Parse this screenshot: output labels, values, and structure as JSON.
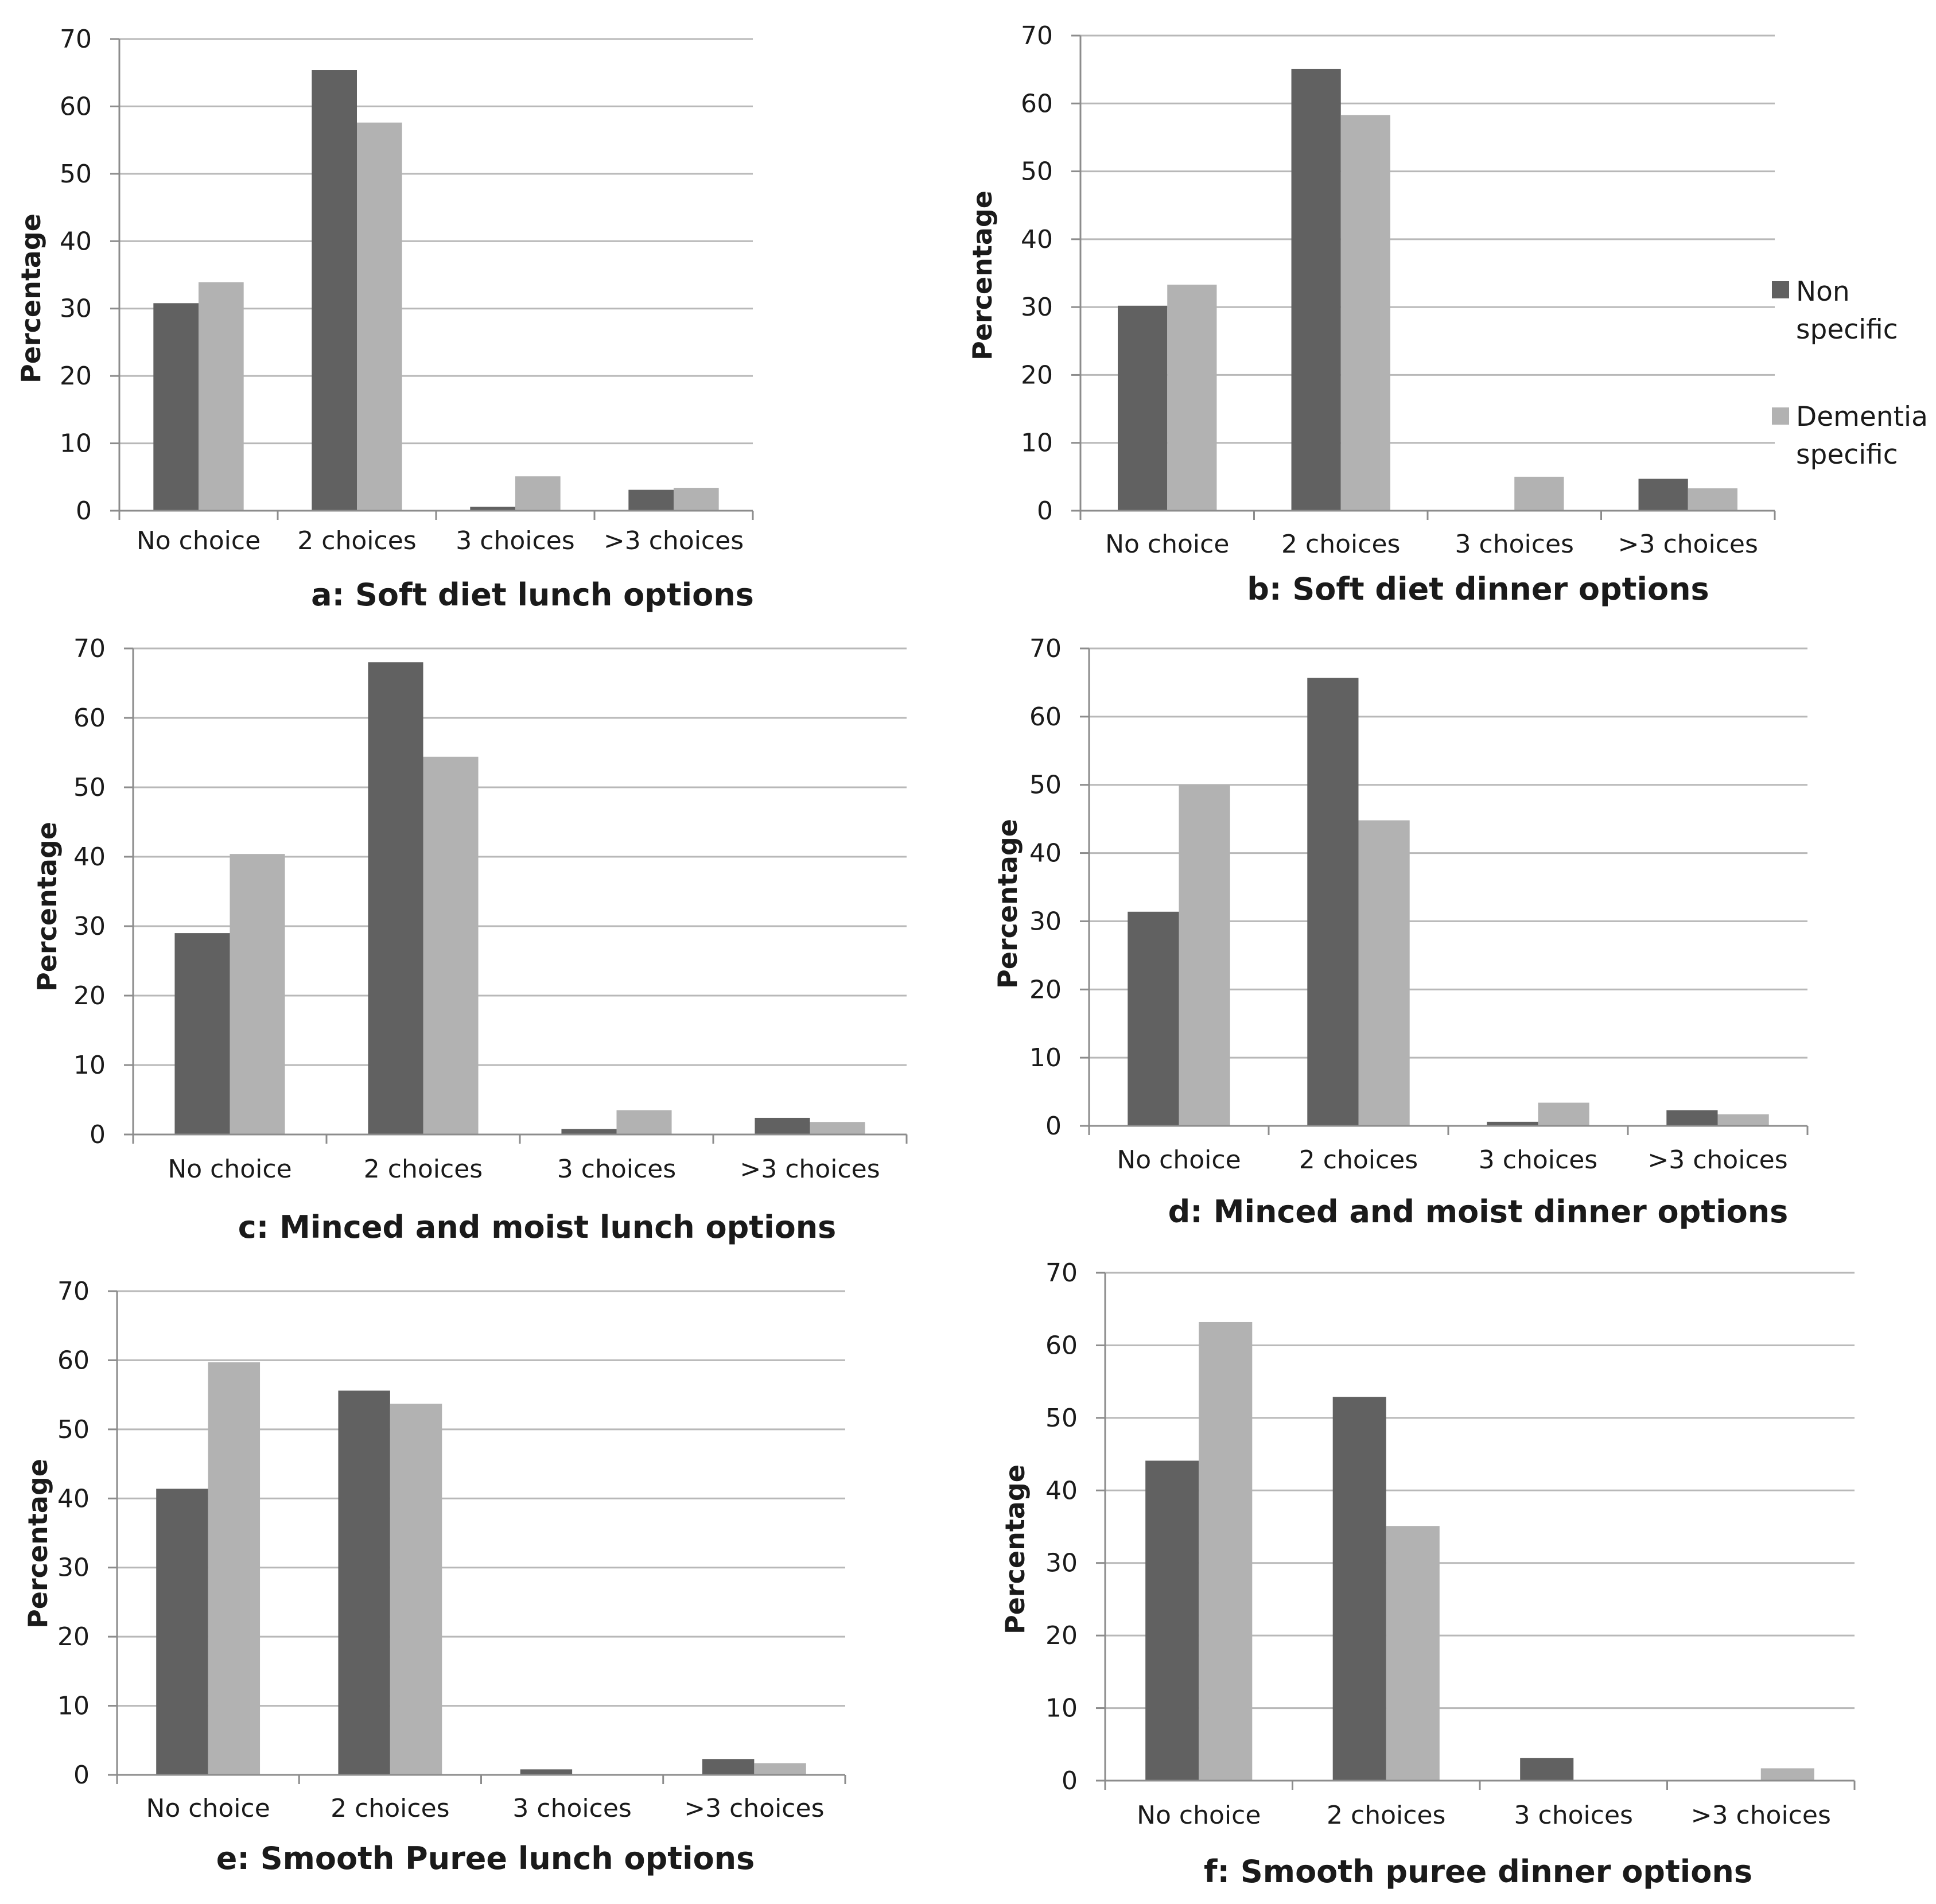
{
  "colors": {
    "non_specific": "#616161",
    "dementia_specific": "#b2b2b2",
    "gridline": "#b8b8b8",
    "axis": "#8c8c8c"
  },
  "legend": {
    "items": [
      {
        "line1": "Non",
        "line2": "specific"
      },
      {
        "line1": "Dementia",
        "line2": "specific"
      }
    ]
  },
  "chart_data": [
    {
      "id": "a",
      "type": "bar",
      "title": "a: Soft diet lunch options",
      "ylabel": "Percentage",
      "ylim": [
        0,
        70
      ],
      "yticks": [
        "0",
        "10",
        "20",
        "30",
        "40",
        "50",
        "60",
        "70"
      ],
      "categories": [
        "No choice",
        "2 choices",
        "3 choices",
        ">3 choices"
      ],
      "series": [
        {
          "name": "Non specific",
          "values": [
            30.8,
            65.4,
            0.6,
            3.1
          ]
        },
        {
          "name": "Dementia specific",
          "values": [
            33.9,
            57.6,
            5.1,
            3.4
          ]
        }
      ]
    },
    {
      "id": "b",
      "type": "bar",
      "title": "b: Soft diet dinner options",
      "ylabel": "Percentage",
      "ylim": [
        0,
        70
      ],
      "yticks": [
        "0",
        "10",
        "20",
        "30",
        "40",
        "50",
        "60",
        "70"
      ],
      "categories": [
        "No choice",
        "2 choices",
        "3 choices",
        ">3 choices"
      ],
      "series": [
        {
          "name": "Non specific",
          "values": [
            30.2,
            65.1,
            0,
            4.7
          ]
        },
        {
          "name": "Dementia specific",
          "values": [
            33.3,
            58.3,
            5.0,
            3.3
          ]
        }
      ]
    },
    {
      "id": "c",
      "type": "bar",
      "title": "c: Minced and moist lunch options",
      "ylabel": "Percentage",
      "ylim": [
        0,
        70
      ],
      "yticks": [
        "0",
        "10",
        "20",
        "30",
        "40",
        "50",
        "60",
        "70"
      ],
      "categories": [
        "No choice",
        "2 choices",
        "3 choices",
        ">3 choices"
      ],
      "series": [
        {
          "name": "Non specific",
          "values": [
            29.0,
            68.0,
            0.8,
            2.4
          ]
        },
        {
          "name": "Dementia specific",
          "values": [
            40.4,
            54.4,
            3.5,
            1.8
          ]
        }
      ]
    },
    {
      "id": "d",
      "type": "bar",
      "title": "d: Minced and moist dinner options",
      "ylabel": "Percentage",
      "ylim": [
        0,
        70
      ],
      "yticks": [
        "0",
        "10",
        "20",
        "30",
        "40",
        "50",
        "60",
        "70"
      ],
      "categories": [
        "No choice",
        "2 choices",
        "3 choices",
        ">3 choices"
      ],
      "series": [
        {
          "name": "Non specific",
          "values": [
            31.4,
            65.7,
            0.6,
            2.3
          ]
        },
        {
          "name": "Dementia specific",
          "values": [
            50.0,
            44.8,
            3.4,
            1.7
          ]
        }
      ]
    },
    {
      "id": "e",
      "type": "bar",
      "title": "e: Smooth Puree lunch options",
      "ylabel": "Percentage",
      "ylim": [
        0,
        70
      ],
      "yticks": [
        "0",
        "10",
        "20",
        "30",
        "40",
        "50",
        "60",
        "70"
      ],
      "categories": [
        "No choice",
        "2 choices",
        "3 choices",
        ">3 choices"
      ],
      "series": [
        {
          "name": "Non specific",
          "values": [
            41.4,
            55.6,
            0.8,
            2.3
          ]
        },
        {
          "name": "Dementia specific",
          "values": [
            59.7,
            53.7,
            0,
            1.7
          ]
        }
      ]
    },
    {
      "id": "f",
      "type": "bar",
      "title": "f: Smooth puree dinner options",
      "ylabel": "Percentage",
      "ylim": [
        0,
        70
      ],
      "yticks": [
        "0",
        "10",
        "20",
        "30",
        "40",
        "50",
        "60",
        "70"
      ],
      "categories": [
        "No choice",
        "2 choices",
        "3 choices",
        ">3 choices"
      ],
      "series": [
        {
          "name": "Non specific",
          "values": [
            44.1,
            52.9,
            3.1,
            0
          ]
        },
        {
          "name": "Dementia specific",
          "values": [
            63.2,
            35.1,
            0,
            1.7
          ]
        }
      ]
    }
  ]
}
